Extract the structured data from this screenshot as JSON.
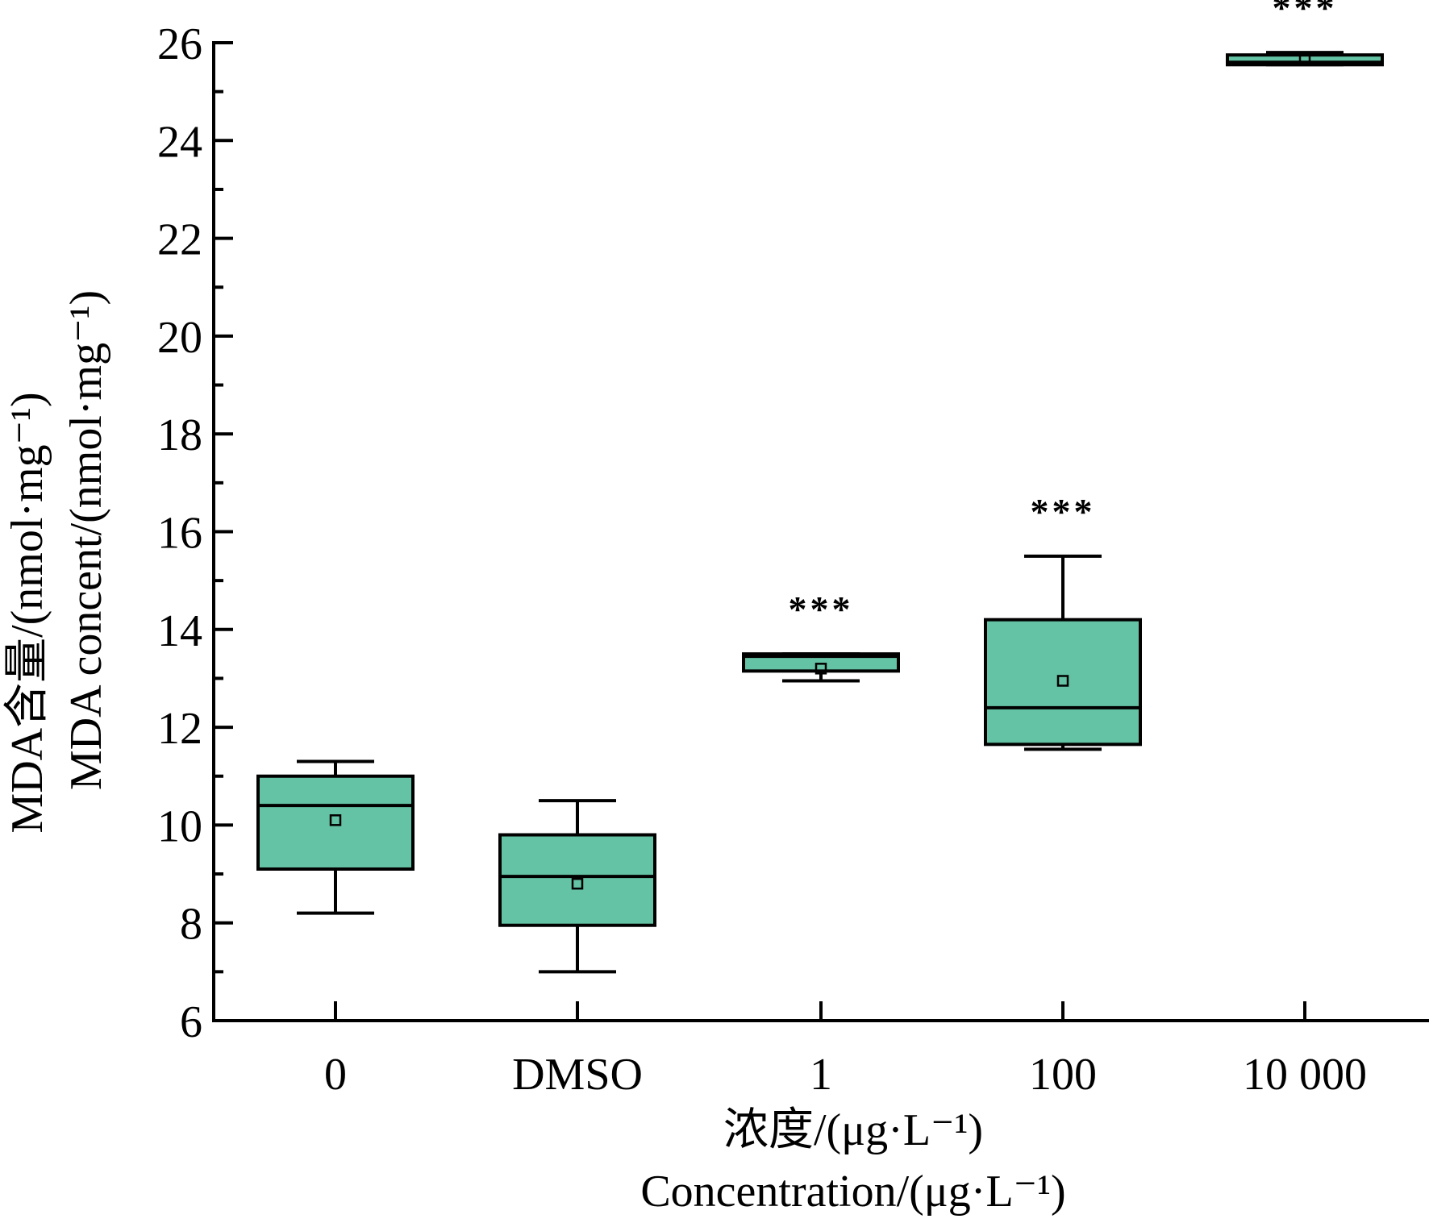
{
  "colors": {
    "box_fill": "#64c3a4",
    "line": "#000000",
    "background": "#ffffff"
  },
  "chart_data": {
    "type": "box",
    "categories": [
      "0",
      "DMSO",
      "1",
      "100",
      "10 000"
    ],
    "xlabel_cn": "浓度/(μg·L⁻¹)",
    "xlabel_en": "Concentration/(μg·L⁻¹)",
    "ylabel_cn": "MDA含量/(nmol·mg⁻¹)",
    "ylabel_en": "MDA concent/(nmol·mg⁻¹)",
    "ylim": [
      6,
      26
    ],
    "yticks": [
      "6",
      "8",
      "10",
      "12",
      "14",
      "16",
      "18",
      "20",
      "22",
      "24",
      "26"
    ],
    "boxes": [
      {
        "category": "0",
        "whisker_low": 8.2,
        "q1": 9.1,
        "median": 10.4,
        "q3": 11.0,
        "whisker_high": 11.3,
        "mean": 10.1,
        "significance": ""
      },
      {
        "category": "DMSO",
        "whisker_low": 7.0,
        "q1": 7.95,
        "median": 8.95,
        "q3": 9.8,
        "whisker_high": 10.5,
        "mean": 8.8,
        "significance": ""
      },
      {
        "category": "1",
        "whisker_low": 12.95,
        "q1": 13.15,
        "median": 13.45,
        "q3": 13.5,
        "whisker_high": 13.5,
        "mean": 13.2,
        "significance": "***"
      },
      {
        "category": "100",
        "whisker_low": 11.55,
        "q1": 11.65,
        "median": 12.4,
        "q3": 14.2,
        "whisker_high": 15.5,
        "mean": 12.95,
        "significance": "***"
      },
      {
        "category": "10 000",
        "whisker_low": 25.55,
        "q1": 25.55,
        "median": 25.6,
        "q3": 25.75,
        "whisker_high": 25.8,
        "mean": 25.65,
        "significance": "***"
      }
    ]
  }
}
